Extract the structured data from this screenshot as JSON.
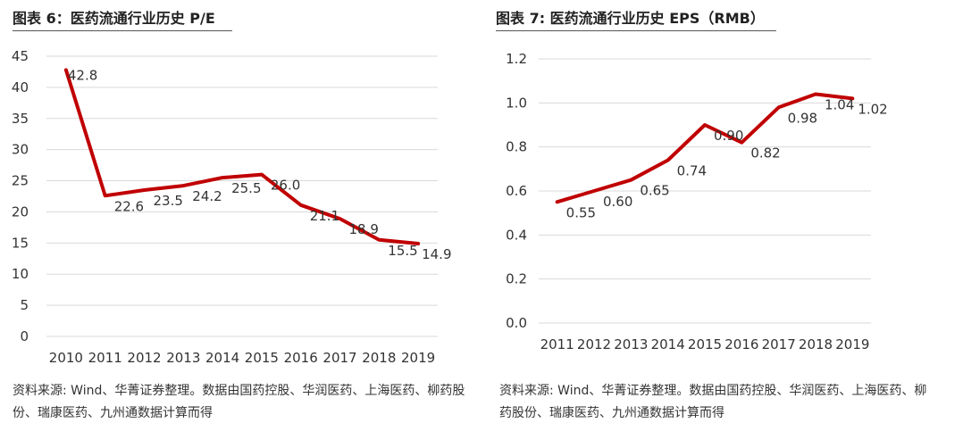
{
  "figures": [
    {
      "title": "图表 6：医药流通行业历史 P/E",
      "source": "资料来源: Wind、华菁证券整理。数据由国药控股、华润医药、上海医药、柳药股份、瑞康医药、九州通数据计算而得"
    },
    {
      "title": "图表 7: 医药流通行业历史 EPS（RMB）",
      "source": "资料来源: Wind、华菁证券整理。数据由国药控股、华润医药、上海医药、柳药股份、瑞康医药、九州通数据计算而得"
    }
  ],
  "colors": {
    "line": "#c00000",
    "grid": "#d9d9d9",
    "text": "#333333"
  },
  "chart_data": [
    {
      "type": "line",
      "title": "图表 6：医药流通行业历史 P/E",
      "categories": [
        "2010",
        "2011",
        "2012",
        "2013",
        "2014",
        "2015",
        "2016",
        "2017",
        "2018",
        "2019"
      ],
      "series": [
        {
          "values": [
            42.8,
            22.6,
            23.5,
            24.2,
            25.5,
            26.0,
            21.1,
            18.9,
            15.5,
            14.9
          ],
          "labels": [
            "42.8",
            "22.6",
            "23.5",
            "24.2",
            "25.5",
            "26.0",
            "21.1",
            "18.9",
            "15.5",
            "14.9"
          ]
        }
      ],
      "ylim": [
        0,
        45
      ],
      "yticks": [
        "0",
        "5",
        "10",
        "15",
        "20",
        "25",
        "30",
        "35",
        "40",
        "45"
      ],
      "grid": true,
      "legend": "none"
    },
    {
      "type": "line",
      "title": "图表 7: 医药流通行业历史 EPS（RMB）",
      "categories": [
        "2011",
        "2012",
        "2013",
        "2014",
        "2015",
        "2016",
        "2017",
        "2018",
        "2019"
      ],
      "series": [
        {
          "values": [
            0.55,
            0.6,
            0.65,
            0.74,
            0.9,
            0.82,
            0.98,
            1.04,
            1.02
          ],
          "labels": [
            "0.55",
            "0.60",
            "0.65",
            "0.74",
            "0.90",
            "0.82",
            "0.98",
            "1.04",
            "1.02"
          ]
        }
      ],
      "ylim": [
        0,
        1.2
      ],
      "yticks": [
        "0.0",
        "0.2",
        "0.4",
        "0.6",
        "0.8",
        "1.0",
        "1.2"
      ],
      "grid": true,
      "legend": "none"
    }
  ]
}
